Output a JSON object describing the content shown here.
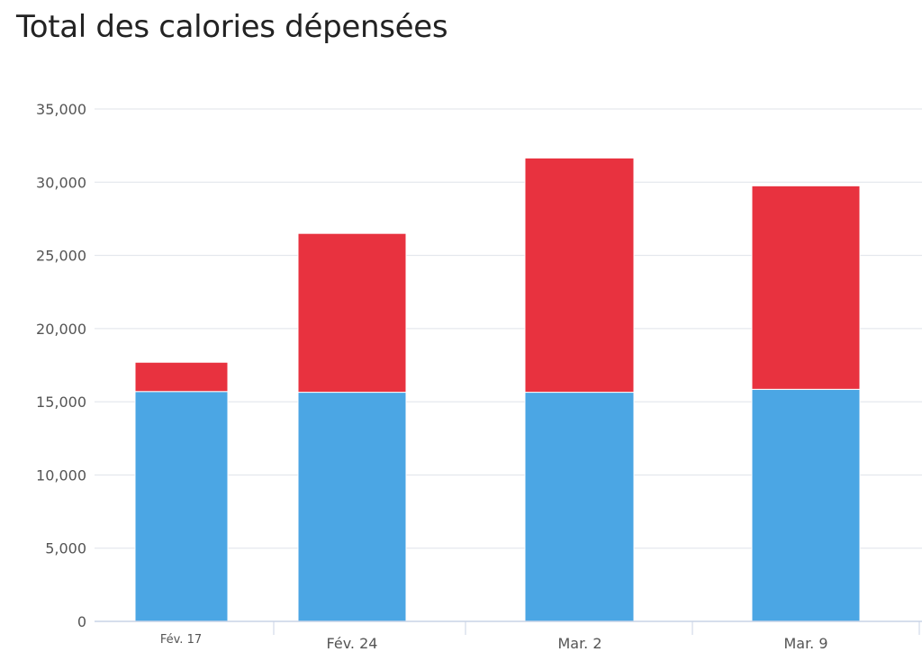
{
  "chart_data": {
    "type": "bar",
    "stacked": true,
    "title": "Total des calories dépensées",
    "xlabel": "",
    "ylabel": "",
    "categories": [
      "Fév. 17",
      "Fév. 24",
      "Mar. 2",
      "Mar. 9"
    ],
    "y_tick_labels": [
      "0",
      "5,000",
      "10,000",
      "15,000",
      "20,000",
      "25,000",
      "30,000",
      "35,000"
    ],
    "ylim": [
      0,
      35000
    ],
    "y_tick_step": 5000,
    "grid": true,
    "legend": "none",
    "series": [
      {
        "values": [
          15700,
          15650,
          15650,
          15850
        ],
        "color": "#4ba6e4"
      },
      {
        "values": [
          2000,
          10850,
          16000,
          13900
        ],
        "color": "#e8323f"
      }
    ]
  }
}
